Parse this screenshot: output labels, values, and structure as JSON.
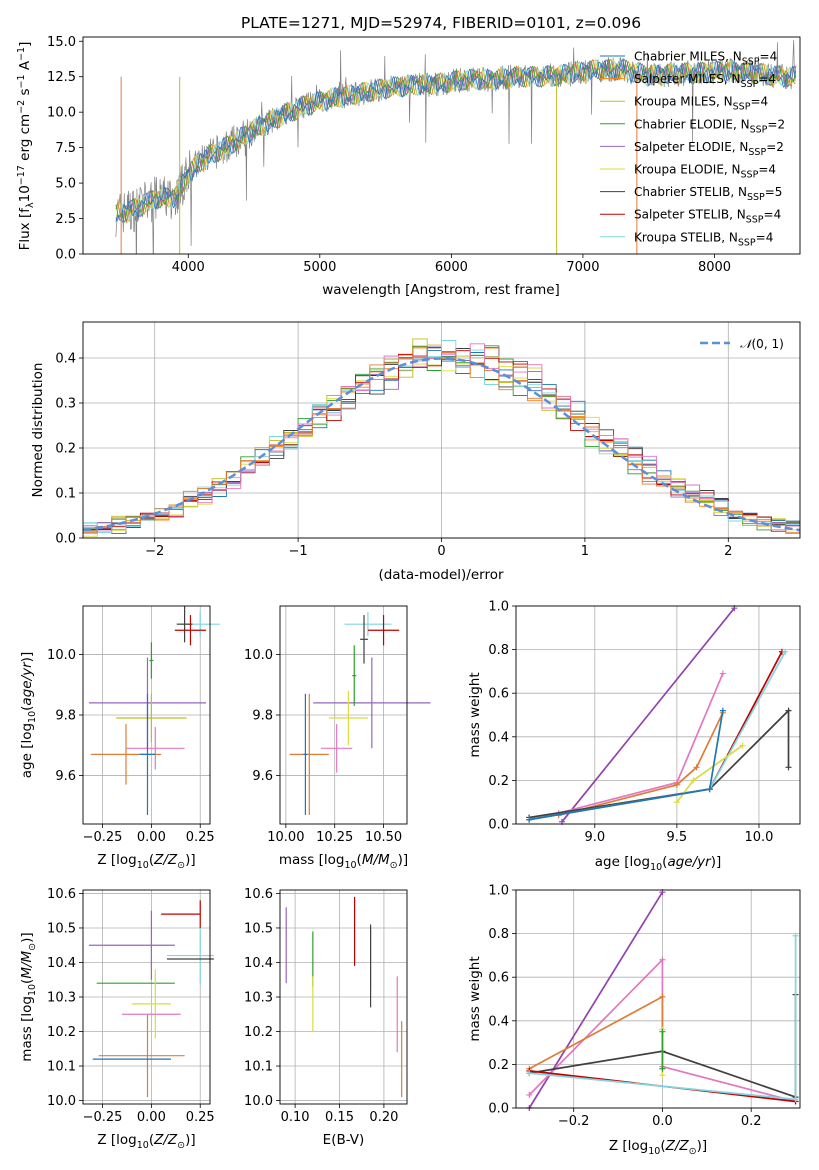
{
  "title": "PLATE=1271, MJD=52974, FIBERID=0101, z=0.096",
  "colors": {
    "Chabrier MILES": "#1f77b4",
    "Salpeter MILES": "#ff7f0e",
    "Kroupa MILES": "#bcbd22",
    "Chabrier ELODIE": "#2ca02c",
    "Salpeter ELODIE": "#9467bd",
    "Kroupa ELODIE": "#dbdb40",
    "Chabrier STELIB": "#404040",
    "Salpeter STELIB": "#c00000",
    "Kroupa STELIB": "#7fd6e0",
    "gray_spec": "#808080",
    "gaussian": "#5b8fd9",
    "pink": "#e377c2",
    "orange": "#e07b39",
    "purple": "#8e44ad"
  },
  "chart_data": [
    {
      "type": "line",
      "title": "PLATE=1271, MJD=52974, FIBERID=0101, z=0.096",
      "xlabel": "wavelength [Angstrom, rest frame]",
      "ylabel_parts": [
        "Flux [f",
        "λ",
        "10",
        "−17",
        " erg cm",
        "−2",
        " s",
        "−1",
        " A",
        "−1",
        "]"
      ],
      "xlim": [
        3200,
        8650
      ],
      "ylim": [
        0,
        15.3
      ],
      "xticks": [
        4000,
        5000,
        6000,
        7000,
        8000
      ],
      "yticks": [
        0.0,
        2.5,
        5.0,
        7.5,
        10.0,
        12.5,
        15.0
      ],
      "continuum": [
        [
          3450,
          2.8
        ],
        [
          3600,
          3.2
        ],
        [
          3750,
          3.9
        ],
        [
          3900,
          4.0
        ],
        [
          4000,
          5.6
        ],
        [
          4100,
          6.6
        ],
        [
          4300,
          7.6
        ],
        [
          4500,
          8.8
        ],
        [
          4700,
          9.7
        ],
        [
          4900,
          10.5
        ],
        [
          5100,
          11.0
        ],
        [
          5300,
          11.3
        ],
        [
          5500,
          11.7
        ],
        [
          5700,
          11.9
        ],
        [
          5900,
          12.0
        ],
        [
          6100,
          12.3
        ],
        [
          6300,
          12.3
        ],
        [
          6500,
          12.5
        ],
        [
          6700,
          12.5
        ],
        [
          6900,
          12.7
        ],
        [
          7100,
          13.0
        ],
        [
          7300,
          13.0
        ],
        [
          7500,
          12.6
        ],
        [
          7700,
          12.7
        ],
        [
          7900,
          12.8
        ],
        [
          8100,
          12.9
        ],
        [
          8300,
          12.8
        ],
        [
          8500,
          12.5
        ]
      ],
      "legend": [
        {
          "label": "Chabrier MILES, N",
          "sub": "SSP",
          "suffix": "=4",
          "color": "#1f77b4"
        },
        {
          "label": "Salpeter MILES, N",
          "sub": "SSP",
          "suffix": "=4",
          "color": "#ff7f0e"
        },
        {
          "label": "Kroupa MILES, N",
          "sub": "SSP",
          "suffix": "=4",
          "color": "#bcbd22"
        },
        {
          "label": "Chabrier ELODIE, N",
          "sub": "SSP",
          "suffix": "=2",
          "color": "#2ca02c"
        },
        {
          "label": "Salpeter ELODIE, N",
          "sub": "SSP",
          "suffix": "=2",
          "color": "#9467bd"
        },
        {
          "label": "Kroupa ELODIE, N",
          "sub": "SSP",
          "suffix": "=4",
          "color": "#dbdb40"
        },
        {
          "label": "Chabrier STELIB, N",
          "sub": "SSP",
          "suffix": "=5",
          "color": "#404040"
        },
        {
          "label": "Salpeter STELIB, N",
          "sub": "SSP",
          "suffix": "=4",
          "color": "#c00000"
        },
        {
          "label": "Kroupa STELIB, N",
          "sub": "SSP",
          "suffix": "=4",
          "color": "#7fd6e0"
        }
      ],
      "legend_position": "right"
    },
    {
      "type": "line",
      "xlabel": "(data-model)/error",
      "ylabel": "Normed distribution",
      "xlim": [
        -2.5,
        2.5
      ],
      "ylim": [
        0,
        0.48
      ],
      "xticks": [
        -2,
        -1,
        0,
        1,
        2
      ],
      "yticks": [
        0.0,
        0.1,
        0.2,
        0.3,
        0.4
      ],
      "grid": true,
      "legend": "𝒩(0, 1)",
      "legend_position": "top-right"
    },
    {
      "type": "scatter",
      "xlabel": "Z [log10(Z/Z⊙)]",
      "ylabel": "age  [log10(age/yr)]",
      "xlim": [
        -0.35,
        0.3
      ],
      "ylim": [
        9.44,
        10.16
      ],
      "xticks": [
        -0.25,
        0.0,
        0.25
      ],
      "yticks": [
        9.6,
        9.8,
        10.0
      ],
      "points": [
        {
          "x": 0.25,
          "y": 10.1,
          "xe": 0.1,
          "ye": 0.04,
          "c": "#7fd6e0"
        },
        {
          "x": 0.17,
          "y": 10.1,
          "xe": 0.04,
          "ye": 0.06,
          "c": "#404040"
        },
        {
          "x": 0.2,
          "y": 10.08,
          "xe": 0.08,
          "ye": 0.05,
          "c": "#c00000"
        },
        {
          "x": -0.02,
          "y": 9.84,
          "xe": 0.3,
          "ye": 0.15,
          "c": "#9467bd"
        },
        {
          "x": 0.0,
          "y": 9.79,
          "xe": 0.18,
          "ye": 0.08,
          "c": "#bcbd22"
        },
        {
          "x": 0.02,
          "y": 9.69,
          "xe": 0.15,
          "ye": 0.07,
          "c": "#e377c2"
        },
        {
          "x": -0.13,
          "y": 9.67,
          "xe": 0.18,
          "ye": 0.1,
          "c": "#e07b39"
        },
        {
          "x": -0.02,
          "y": 9.67,
          "xe": 0.04,
          "ye": 0.2,
          "c": "#1f77b4"
        },
        {
          "x": 0.0,
          "y": 9.98,
          "xe": 0.01,
          "ye": 0.06,
          "c": "#2ca02c"
        }
      ]
    },
    {
      "type": "scatter",
      "xlabel": "mass [log10(M/M⊙)]",
      "xlim": [
        9.97,
        10.62
      ],
      "ylim": [
        9.44,
        10.16
      ],
      "xticks": [
        10.0,
        10.25,
        10.5
      ],
      "yticks": [
        9.6,
        9.8,
        10.0
      ],
      "points": [
        {
          "x": 10.42,
          "y": 10.1,
          "xe": 0.12,
          "ye": 0.04,
          "c": "#7fd6e0"
        },
        {
          "x": 10.5,
          "y": 10.08,
          "xe": 0.08,
          "ye": 0.05,
          "c": "#c00000"
        },
        {
          "x": 10.4,
          "y": 10.05,
          "xe": 0.02,
          "ye": 0.08,
          "c": "#404040"
        },
        {
          "x": 10.44,
          "y": 9.84,
          "xe": 0.3,
          "ye": 0.15,
          "c": "#9467bd"
        },
        {
          "x": 10.32,
          "y": 9.79,
          "xe": 0.1,
          "ye": 0.09,
          "c": "#dbdb40"
        },
        {
          "x": 10.26,
          "y": 9.69,
          "xe": 0.08,
          "ye": 0.08,
          "c": "#e377c2"
        },
        {
          "x": 10.12,
          "y": 9.67,
          "xe": 0.1,
          "ye": 0.2,
          "c": "#e07b39"
        },
        {
          "x": 10.1,
          "y": 9.67,
          "xe": 0.01,
          "ye": 0.2,
          "c": "#1f77b4"
        },
        {
          "x": 10.35,
          "y": 9.93,
          "xe": 0.01,
          "ye": 0.1,
          "c": "#2ca02c"
        }
      ]
    },
    {
      "type": "line",
      "xlabel": "age  [log10(age/yr)]",
      "ylabel": "mass weight",
      "xlim": [
        8.52,
        10.25
      ],
      "ylim": [
        0,
        1.0
      ],
      "xticks": [
        9.0,
        9.5,
        10.0
      ],
      "yticks": [
        0.0,
        0.2,
        0.4,
        0.6,
        0.8,
        1.0
      ],
      "grid": true,
      "series": [
        {
          "c": "#8e44ad",
          "x": [
            8.8,
            9.85
          ],
          "y": [
            0.01,
            0.99
          ]
        },
        {
          "c": "#e377c2",
          "x": [
            8.78,
            9.5,
            9.78
          ],
          "y": [
            0.05,
            0.19,
            0.69
          ]
        },
        {
          "c": "#e07b39",
          "x": [
            8.78,
            9.5,
            9.62,
            9.78
          ],
          "y": [
            0.04,
            0.18,
            0.26,
            0.51
          ]
        },
        {
          "c": "#404040",
          "x": [
            8.6,
            9.7,
            10.18,
            10.18
          ],
          "y": [
            0.03,
            0.16,
            0.52,
            0.26
          ]
        },
        {
          "c": "#c00000",
          "x": [
            8.6,
            9.7,
            10.14
          ],
          "y": [
            0.02,
            0.16,
            0.79
          ]
        },
        {
          "c": "#7fd6e0",
          "x": [
            8.6,
            9.7,
            10.16
          ],
          "y": [
            0.02,
            0.16,
            0.79
          ]
        },
        {
          "c": "#dbdb40",
          "x": [
            9.5,
            9.6,
            9.9
          ],
          "y": [
            0.1,
            0.2,
            0.36
          ]
        },
        {
          "c": "#1f77b4",
          "x": [
            8.6,
            9.7,
            9.78
          ],
          "y": [
            0.02,
            0.16,
            0.52
          ]
        }
      ]
    },
    {
      "type": "scatter",
      "xlabel": "Z [log10(Z/Z⊙)]",
      "ylabel": "mass [log10(M/M⊙)]",
      "xlim": [
        -0.35,
        0.3
      ],
      "ylim": [
        9.99,
        10.61
      ],
      "xticks": [
        -0.25,
        0.0,
        0.25
      ],
      "yticks": [
        10.0,
        10.1,
        10.2,
        10.3,
        10.4,
        10.5,
        10.6
      ],
      "points": [
        {
          "x": 0.15,
          "y": 10.54,
          "xe": 0.1,
          "ye": 0.0,
          "c": "#c00000"
        },
        {
          "x": 0.25,
          "y": 10.54,
          "xe": 0.0,
          "ye": 0.04,
          "c": "#c00000"
        },
        {
          "x": -0.1,
          "y": 10.45,
          "xe": 0.22,
          "ye": 0.0,
          "c": "#9467bd"
        },
        {
          "x": 0.0,
          "y": 10.45,
          "xe": 0.0,
          "ye": 0.1,
          "c": "#9467bd"
        },
        {
          "x": 0.2,
          "y": 10.42,
          "xe": 0.12,
          "ye": 0.0,
          "c": "#7fd6e0"
        },
        {
          "x": 0.25,
          "y": 10.42,
          "xe": 0.0,
          "ye": 0.08,
          "c": "#7fd6e0"
        },
        {
          "x": 0.2,
          "y": 10.41,
          "xe": 0.12,
          "ye": 0.0,
          "c": "#404040"
        },
        {
          "x": -0.08,
          "y": 10.34,
          "xe": 0.2,
          "ye": 0.0,
          "c": "#2ca02c"
        },
        {
          "x": 0.0,
          "y": 10.28,
          "xe": 0.1,
          "ye": 0.0,
          "c": "#dbdb40"
        },
        {
          "x": 0.02,
          "y": 10.28,
          "xe": 0.0,
          "ye": 0.1,
          "c": "#dbdb40"
        },
        {
          "x": 0.0,
          "y": 10.25,
          "xe": 0.15,
          "ye": 0.0,
          "c": "#e377c2"
        },
        {
          "x": -0.05,
          "y": 10.13,
          "xe": 0.22,
          "ye": 0.0,
          "c": "#e07b39"
        },
        {
          "x": -0.02,
          "y": 10.13,
          "xe": 0.0,
          "ye": 0.12,
          "c": "#e07b39"
        },
        {
          "x": -0.1,
          "y": 10.12,
          "xe": 0.2,
          "ye": 0.0,
          "c": "#1f77b4"
        }
      ]
    },
    {
      "type": "scatter",
      "xlabel": "E(B-V)",
      "xlim": [
        0.083,
        0.226
      ],
      "ylim": [
        9.99,
        10.61
      ],
      "xticks": [
        0.1,
        0.15,
        0.2
      ],
      "yticks": [
        10.0,
        10.1,
        10.2,
        10.3,
        10.4,
        10.5,
        10.6
      ],
      "points": [
        {
          "x": 0.09,
          "y": 10.45,
          "xe": 0.0,
          "ye": 0.11,
          "c": "#9467bd"
        },
        {
          "x": 0.12,
          "y": 10.41,
          "xe": 0.0,
          "ye": 0.08,
          "c": "#2ca02c"
        },
        {
          "x": 0.12,
          "y": 10.28,
          "xe": 0.0,
          "ye": 0.08,
          "c": "#dbdb40"
        },
        {
          "x": 0.167,
          "y": 10.49,
          "xe": 0.0,
          "ye": 0.1,
          "c": "#c00000"
        },
        {
          "x": 0.185,
          "y": 10.41,
          "xe": 0.0,
          "ye": 0.09,
          "c": "#7fd6e0"
        },
        {
          "x": 0.185,
          "y": 10.39,
          "xe": 0.0,
          "ye": 0.12,
          "c": "#404040"
        },
        {
          "x": 0.215,
          "y": 10.25,
          "xe": 0.0,
          "ye": 0.11,
          "c": "#e377c2"
        },
        {
          "x": 0.22,
          "y": 10.12,
          "xe": 0.0,
          "ye": 0.11,
          "c": "#e07b39"
        }
      ]
    },
    {
      "type": "line",
      "xlabel": "Z [log10(Z/Z⊙)]",
      "ylabel": "mass weight",
      "xlim": [
        -0.33,
        0.31
      ],
      "ylim": [
        0,
        1.0
      ],
      "xticks": [
        -0.2,
        0.0,
        0.2
      ],
      "yticks": [
        0.0,
        0.2,
        0.4,
        0.6,
        0.8,
        1.0
      ],
      "grid": true,
      "series": [
        {
          "c": "#8e44ad",
          "x": [
            -0.3,
            0.0
          ],
          "y": [
            0.0,
            0.99
          ]
        },
        {
          "c": "#e377c2",
          "x": [
            -0.3,
            0.0,
            0.0,
            0.3
          ],
          "y": [
            0.06,
            0.68,
            0.19,
            0.03
          ]
        },
        {
          "c": "#e07b39",
          "x": [
            -0.3,
            0.0,
            0.0
          ],
          "y": [
            0.18,
            0.51,
            0.26
          ]
        },
        {
          "c": "#404040",
          "x": [
            -0.3,
            0.0,
            0.3,
            0.3
          ],
          "y": [
            0.16,
            0.26,
            0.05,
            0.52
          ]
        },
        {
          "c": "#c00000",
          "x": [
            -0.3,
            0.3
          ],
          "y": [
            0.17,
            0.03
          ]
        },
        {
          "c": "#7fd6e0",
          "x": [
            -0.3,
            0.3,
            0.3
          ],
          "y": [
            0.16,
            0.04,
            0.79
          ]
        },
        {
          "c": "#dbdb40",
          "x": [
            0.0,
            0.0
          ],
          "y": [
            0.36,
            0.15
          ]
        },
        {
          "c": "#2ca02c",
          "x": [
            0.0,
            0.0
          ],
          "y": [
            0.35,
            0.18
          ]
        }
      ]
    }
  ]
}
